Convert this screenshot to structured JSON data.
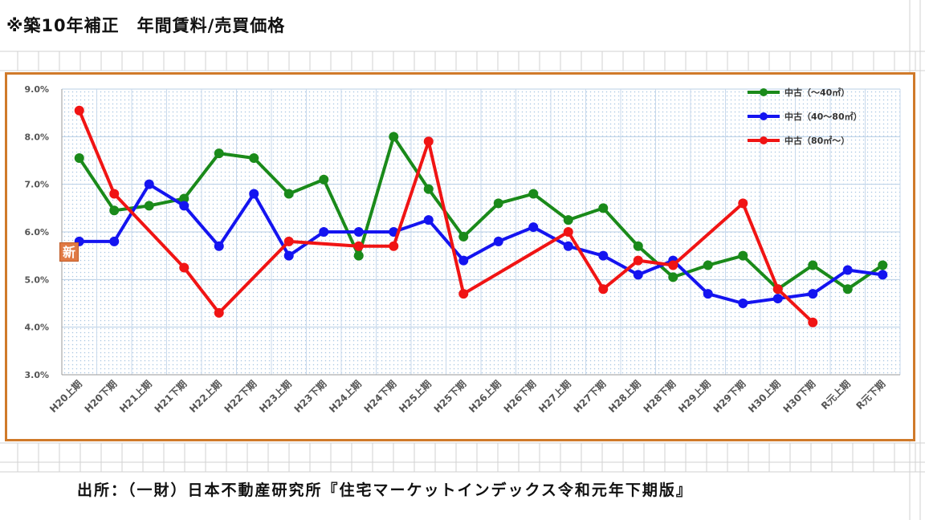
{
  "title": "※築10年補正　年間賃料/売買価格",
  "source": "出所：（一財）日本不動産研究所『住宅マーケットインデックス令和元年下期版』",
  "badge": "新",
  "colors": {
    "frame": "#d07a2a",
    "grid": "#b8cfe6",
    "background_dots": "#a9c6e2"
  },
  "chart_data": {
    "type": "line",
    "title": "",
    "xlabel": "",
    "ylabel": "",
    "ylim": [
      3.0,
      9.0
    ],
    "y_ticks": [
      "3.0%",
      "4.0%",
      "5.0%",
      "6.0%",
      "7.0%",
      "8.0%",
      "9.0%"
    ],
    "categories": [
      "H20上期",
      "H20下期",
      "H21上期",
      "H21下期",
      "H22上期",
      "H22下期",
      "H23上期",
      "H23下期",
      "H24上期",
      "H24下期",
      "H25上期",
      "H25下期",
      "H26上期",
      "H26下期",
      "H27上期",
      "H27下期",
      "H28上期",
      "H28下期",
      "H29上期",
      "H29下期",
      "H30上期",
      "H30下期",
      "R元上期",
      "R元下期"
    ],
    "legend_position": "top-right",
    "grid": true,
    "series": [
      {
        "name": "中古（～40㎡）",
        "color": "#1a8a1a",
        "values": [
          7.55,
          6.45,
          6.55,
          6.7,
          7.65,
          7.55,
          6.8,
          7.1,
          5.5,
          8.0,
          6.9,
          5.9,
          6.6,
          6.8,
          6.25,
          6.5,
          5.7,
          5.05,
          5.3,
          5.5,
          4.8,
          5.3,
          4.8,
          5.3
        ]
      },
      {
        "name": "中古（40～80㎡）",
        "color": "#1414f0",
        "values": [
          5.8,
          5.8,
          7.0,
          6.55,
          5.7,
          6.8,
          5.5,
          6.0,
          6.0,
          6.0,
          6.25,
          5.4,
          5.8,
          6.1,
          5.7,
          5.5,
          5.1,
          5.4,
          4.7,
          4.5,
          4.6,
          4.7,
          5.2,
          5.1
        ]
      },
      {
        "name": "中古（80㎡～）",
        "color": "#f01414",
        "values": [
          8.55,
          6.8,
          null,
          5.25,
          4.3,
          null,
          5.8,
          null,
          5.7,
          5.7,
          7.9,
          4.7,
          null,
          null,
          6.0,
          4.8,
          5.4,
          5.3,
          null,
          6.6,
          4.8,
          4.1,
          null,
          null
        ]
      }
    ]
  }
}
